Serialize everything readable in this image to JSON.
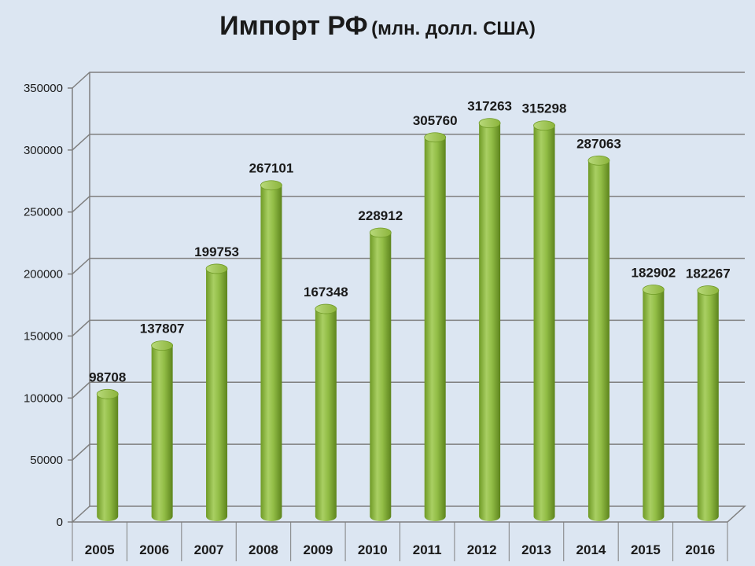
{
  "chart_data": {
    "type": "bar",
    "title": "Импорт РФ",
    "subtitle": "(млн. долл. США)",
    "categories": [
      "2005",
      "2006",
      "2007",
      "2008",
      "2009",
      "2010",
      "2011",
      "2012",
      "2013",
      "2014",
      "2015",
      "2016"
    ],
    "values": [
      98708,
      137807,
      199753,
      267101,
      167348,
      228912,
      305760,
      317263,
      315298,
      287063,
      182902,
      182267
    ],
    "data_labels": [
      "98708",
      "137807",
      "199753",
      "267101",
      "167348",
      "228912",
      "305760",
      "317263",
      "315298",
      "287063",
      "182902",
      "182267"
    ],
    "y_ticks": [
      "0",
      "50000",
      "100000",
      "150000",
      "200000",
      "250000",
      "300000",
      "350000"
    ],
    "ylim": [
      0,
      350000
    ],
    "grid": true,
    "bar_color": "#8cb43c",
    "xlabel": "",
    "ylabel": ""
  }
}
